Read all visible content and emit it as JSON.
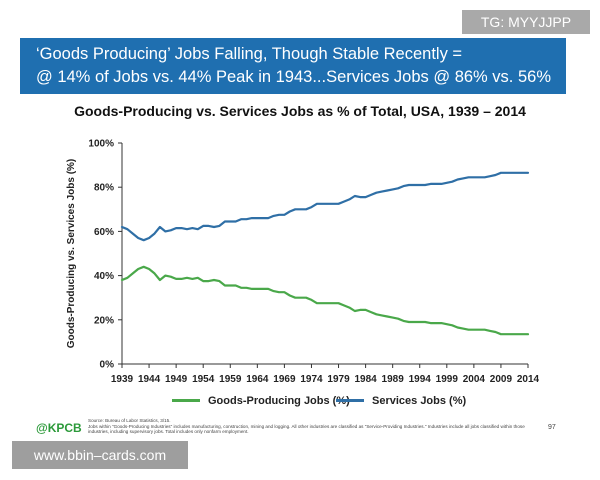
{
  "banner": {
    "line1": "‘Goods Producing’ Jobs Falling, Though Stable Recently  =",
    "line2": "@ 14% of Jobs vs. 44% Peak in 1943...Services Jobs @ 86% vs. 56%"
  },
  "watermarks": {
    "tg": "TG: MYYJJPP",
    "site": "www.bbin–cards.com"
  },
  "footer": {
    "logo": "@KPCB",
    "source_line1": "Source: Bureau of Labor Statistics, 3/15.",
    "source_line2": "Jobs within \"Goods-Producing Industries\" includes manufacturing, construction, mining and logging. All other industries are classified as \"Service-Providing Industries.\" Industries include all jobs classified within those industries, including supervisory jobs. Total includes only nonfarm employment.",
    "page_number": "97"
  },
  "colors": {
    "banner_bg": "#1f6fb0",
    "goods": "#4aa84a",
    "services": "#2f6fa6"
  },
  "chart_data": {
    "type": "line",
    "title": "Goods-Producing vs. Services Jobs as % of Total, USA, 1939 – 2014",
    "xlabel": "",
    "ylabel": "Goods-Producing vs. Services Jobs (%)",
    "xlim": [
      1939,
      2014
    ],
    "ylim": [
      0,
      100
    ],
    "xticks": [
      "1939",
      "1944",
      "1949",
      "1954",
      "1959",
      "1964",
      "1969",
      "1974",
      "1979",
      "1984",
      "1989",
      "1994",
      "1999",
      "2004",
      "2009",
      "2014"
    ],
    "yticks": [
      "0%",
      "20%",
      "40%",
      "60%",
      "80%",
      "100%"
    ],
    "grid": false,
    "legend_position": "bottom",
    "x": [
      1939,
      1940,
      1941,
      1942,
      1943,
      1944,
      1945,
      1946,
      1947,
      1948,
      1949,
      1950,
      1951,
      1952,
      1953,
      1954,
      1955,
      1956,
      1957,
      1958,
      1959,
      1960,
      1961,
      1962,
      1963,
      1964,
      1965,
      1966,
      1967,
      1968,
      1969,
      1970,
      1971,
      1972,
      1973,
      1974,
      1975,
      1976,
      1977,
      1978,
      1979,
      1980,
      1981,
      1982,
      1983,
      1984,
      1985,
      1986,
      1987,
      1988,
      1989,
      1990,
      1991,
      1992,
      1993,
      1994,
      1995,
      1996,
      1997,
      1998,
      1999,
      2000,
      2001,
      2002,
      2003,
      2004,
      2005,
      2006,
      2007,
      2008,
      2009,
      2010,
      2011,
      2012,
      2013,
      2014
    ],
    "series": [
      {
        "name": "Goods-Producing Jobs (%)",
        "values": [
          38,
          39,
          41,
          43,
          44,
          43,
          41,
          38,
          40,
          39.5,
          38.5,
          38.5,
          39,
          38.5,
          39,
          37.5,
          37.5,
          38,
          37.5,
          35.5,
          35.5,
          35.5,
          34.5,
          34.5,
          34,
          34,
          34,
          34,
          33,
          32.5,
          32.5,
          31,
          30,
          30,
          30,
          29,
          27.5,
          27.5,
          27.5,
          27.5,
          27.5,
          26.5,
          25.5,
          24,
          24.5,
          24.5,
          23.5,
          22.5,
          22,
          21.5,
          21,
          20.5,
          19.5,
          19,
          19,
          19,
          19,
          18.5,
          18.5,
          18.5,
          18,
          17.5,
          16.5,
          16,
          15.5,
          15.5,
          15.5,
          15.5,
          15,
          14.5,
          13.5,
          13.5,
          13.5,
          13.5,
          13.5,
          13.5
        ]
      },
      {
        "name": "Services Jobs (%)",
        "values": [
          62,
          61,
          59,
          57,
          56,
          57,
          59,
          62,
          60,
          60.5,
          61.5,
          61.5,
          61,
          61.5,
          61,
          62.5,
          62.5,
          62,
          62.5,
          64.5,
          64.5,
          64.5,
          65.5,
          65.5,
          66,
          66,
          66,
          66,
          67,
          67.5,
          67.5,
          69,
          70,
          70,
          70,
          71,
          72.5,
          72.5,
          72.5,
          72.5,
          72.5,
          73.5,
          74.5,
          76,
          75.5,
          75.5,
          76.5,
          77.5,
          78,
          78.5,
          79,
          79.5,
          80.5,
          81,
          81,
          81,
          81,
          81.5,
          81.5,
          81.5,
          82,
          82.5,
          83.5,
          84,
          84.5,
          84.5,
          84.5,
          84.5,
          85,
          85.5,
          86.5,
          86.5,
          86.5,
          86.5,
          86.5,
          86.5
        ]
      }
    ]
  }
}
